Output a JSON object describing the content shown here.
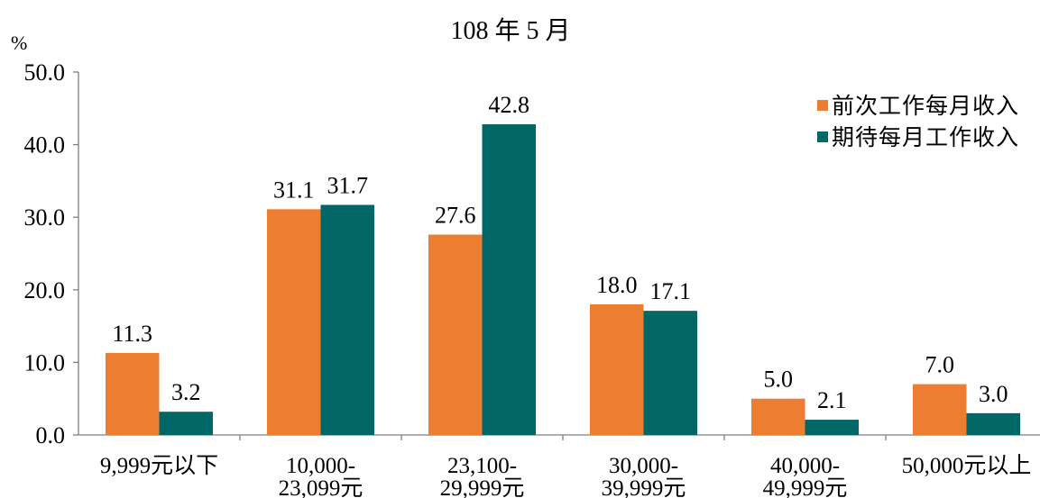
{
  "chart_data": {
    "type": "bar",
    "title": "108 年 5 月",
    "ylabel": "%",
    "xlabel": "",
    "categories": [
      "9,999元以下",
      "10,000-23,099元",
      "23,100-29,999元",
      "30,000-39,999元",
      "40,000-49,999元",
      "50,000元以上"
    ],
    "series": [
      {
        "name": "前次工作每月收入",
        "color": "#ED7D31",
        "values": [
          11.3,
          31.1,
          27.6,
          18.0,
          5.0,
          7.0
        ]
      },
      {
        "name": "期待每月工作收入",
        "color": "#006666",
        "values": [
          3.2,
          31.7,
          42.8,
          17.1,
          2.1,
          3.0
        ]
      }
    ],
    "ylim": [
      0,
      50
    ],
    "yticks": [
      0,
      10,
      20,
      30,
      40,
      50
    ],
    "grid": false,
    "legend": "top-right"
  }
}
